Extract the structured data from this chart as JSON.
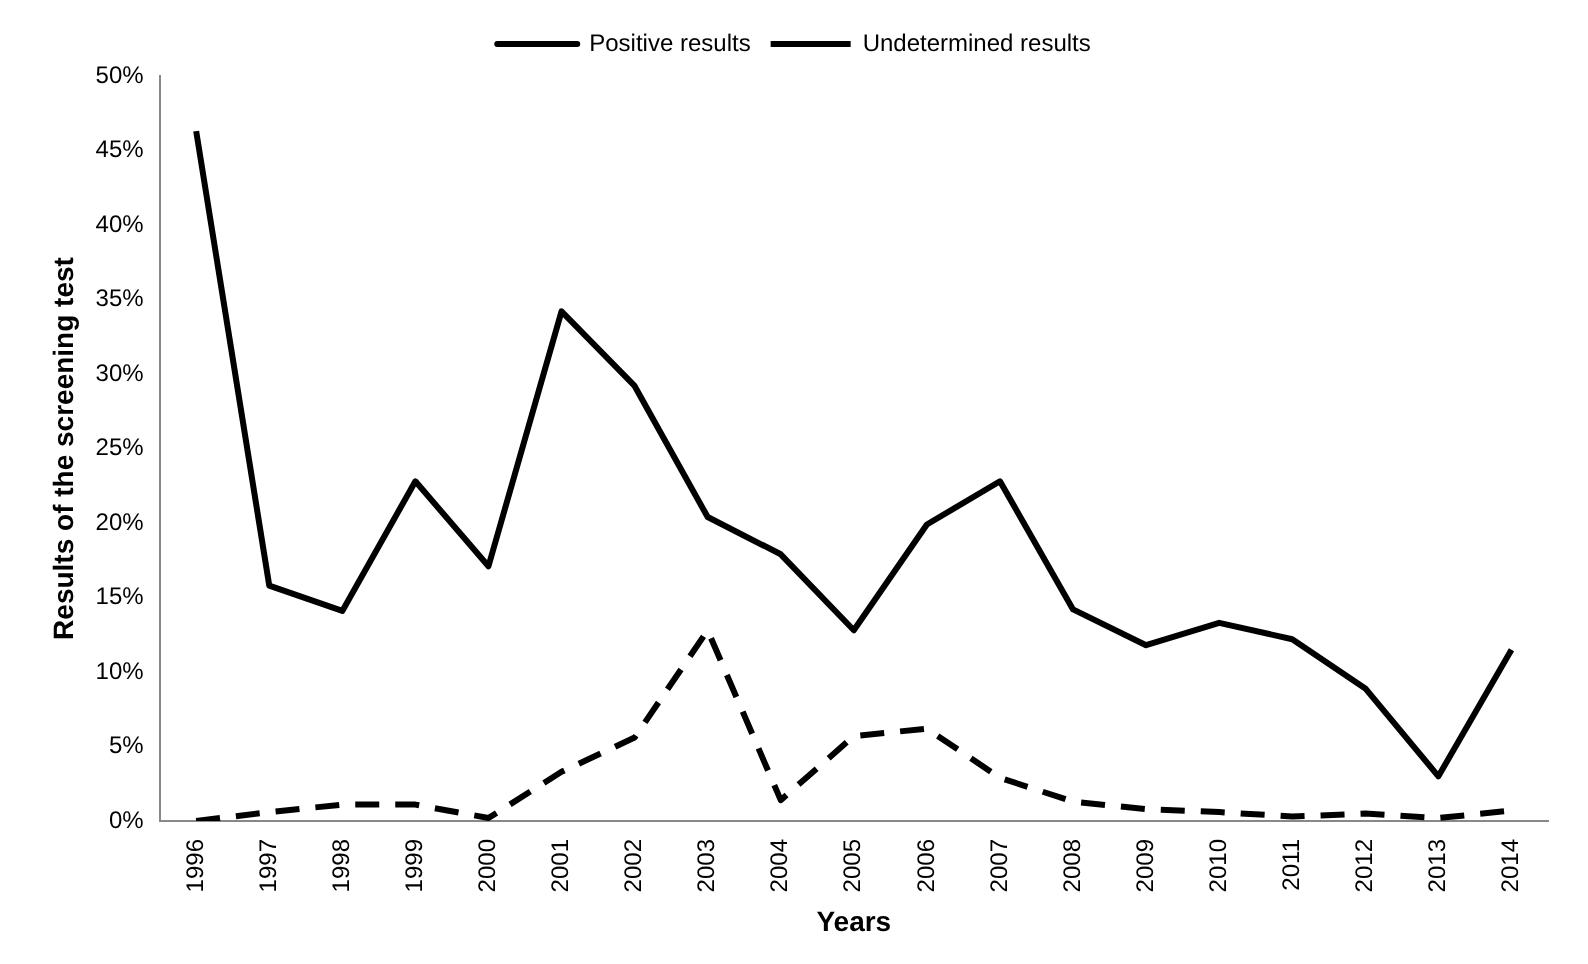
{
  "chart_data": {
    "type": "line",
    "xlabel": "Years",
    "ylabel": "Results of the screening test",
    "categories": [
      "1996",
      "1997",
      "1998",
      "1999",
      "2000",
      "2001",
      "2002",
      "2003",
      "2004",
      "2005",
      "2006",
      "2007",
      "2008",
      "2009",
      "2010",
      "2011",
      "2012",
      "2013",
      "2014"
    ],
    "series": [
      {
        "name": "Positive results",
        "color": "#000000",
        "line_style": "solid",
        "values": [
          46.3,
          15.8,
          14.1,
          22.8,
          17.1,
          34.2,
          29.2,
          20.4,
          17.9,
          12.8,
          19.9,
          22.8,
          14.2,
          11.8,
          13.3,
          12.2,
          8.9,
          3.0,
          11.5
        ]
      },
      {
        "name": "Undetermined results",
        "color": "#000000",
        "line_style": "dashed",
        "values": [
          0,
          0.6,
          1.1,
          1.1,
          0.2,
          3.3,
          5.6,
          12.8,
          1.4,
          5.7,
          6.2,
          2.9,
          1.3,
          0.8,
          0.6,
          0.3,
          0.5,
          0.2,
          0.7
        ]
      }
    ],
    "ylim": [
      0,
      50
    ],
    "yticks": [
      {
        "value": 0,
        "label": "0%"
      },
      {
        "value": 5,
        "label": "5%"
      },
      {
        "value": 10,
        "label": "10%"
      },
      {
        "value": 15,
        "label": "15%"
      },
      {
        "value": 20,
        "label": "20%"
      },
      {
        "value": 25,
        "label": "25%"
      },
      {
        "value": 30,
        "label": "30%"
      },
      {
        "value": 35,
        "label": "35%"
      },
      {
        "value": 40,
        "label": "40%"
      },
      {
        "value": 45,
        "label": "45%"
      },
      {
        "value": 50,
        "label": "50%"
      }
    ],
    "grid": false,
    "legend": "top",
    "marker": "none"
  }
}
